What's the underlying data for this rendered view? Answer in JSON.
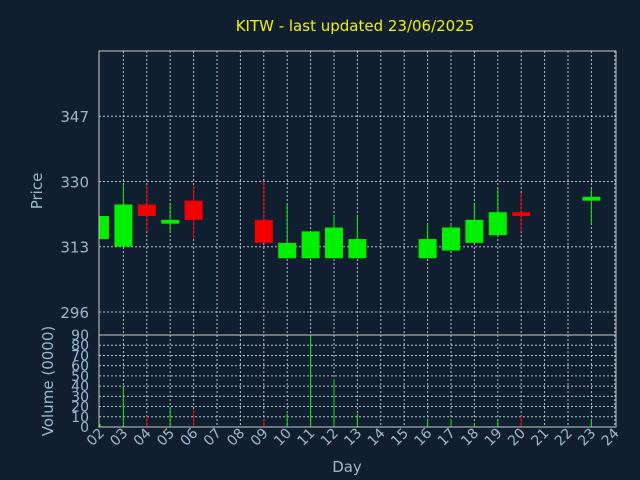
{
  "chart_data": [
    {
      "type": "candlestick",
      "title": "KITW - last updated 23/06/2025",
      "ylabel": "Price",
      "ylim": [
        290,
        364
      ],
      "yticks": [
        296,
        313,
        330,
        347
      ],
      "grid": true,
      "categories": [
        "02",
        "03",
        "04",
        "05",
        "06",
        "07",
        "08",
        "09",
        "10",
        "11",
        "12",
        "13",
        "14",
        "15",
        "16",
        "17",
        "18",
        "19",
        "20",
        "21",
        "22",
        "23",
        "24"
      ],
      "candles": [
        {
          "x": "02",
          "open": 315,
          "high": 321,
          "low": 315,
          "close": 321,
          "direction": "up"
        },
        {
          "x": "03",
          "open": 313,
          "high": 329,
          "low": 313,
          "close": 324,
          "direction": "up"
        },
        {
          "x": "04",
          "open": 324,
          "high": 329,
          "low": 317,
          "close": 321,
          "direction": "down"
        },
        {
          "x": "05",
          "open": 319,
          "high": 324,
          "low": 317,
          "close": 320,
          "direction": "up"
        },
        {
          "x": "06",
          "open": 325,
          "high": 329,
          "low": 315,
          "close": 320,
          "direction": "down"
        },
        {
          "x": "09",
          "open": 320,
          "high": 330,
          "low": 314,
          "close": 314,
          "direction": "down"
        },
        {
          "x": "10",
          "open": 310,
          "high": 324,
          "low": 310,
          "close": 314,
          "direction": "up"
        },
        {
          "x": "11",
          "open": 310,
          "high": 317,
          "low": 310,
          "close": 317,
          "direction": "up"
        },
        {
          "x": "12",
          "open": 310,
          "high": 321,
          "low": 310,
          "close": 318,
          "direction": "up"
        },
        {
          "x": "13",
          "open": 310,
          "high": 321,
          "low": 310,
          "close": 315,
          "direction": "up"
        },
        {
          "x": "16",
          "open": 310,
          "high": 319,
          "low": 310,
          "close": 315,
          "direction": "up"
        },
        {
          "x": "17",
          "open": 312,
          "high": 319,
          "low": 312,
          "close": 318,
          "direction": "up"
        },
        {
          "x": "18",
          "open": 314,
          "high": 324,
          "low": 314,
          "close": 320,
          "direction": "up"
        },
        {
          "x": "19",
          "open": 316,
          "high": 328,
          "low": 316,
          "close": 322,
          "direction": "up"
        },
        {
          "x": "20",
          "open": 322,
          "high": 327,
          "low": 317,
          "close": 321,
          "direction": "down"
        },
        {
          "x": "23",
          "open": 325,
          "high": 328,
          "low": 319,
          "close": 326,
          "direction": "up"
        }
      ],
      "colors": {
        "up": "#00f000",
        "down": "#f00000"
      }
    },
    {
      "type": "bar",
      "ylabel": "Volume (0000)",
      "ylim": [
        0,
        90
      ],
      "yticks": [
        0,
        10,
        20,
        30,
        40,
        50,
        60,
        70,
        80,
        90
      ],
      "xlabel": "Day",
      "categories": [
        "02",
        "03",
        "04",
        "05",
        "06",
        "07",
        "08",
        "09",
        "10",
        "11",
        "12",
        "13",
        "14",
        "15",
        "16",
        "17",
        "18",
        "19",
        "20",
        "21",
        "22",
        "23",
        "24"
      ],
      "bars": [
        {
          "x": "02",
          "value": 3,
          "direction": "up"
        },
        {
          "x": "03",
          "value": 39,
          "direction": "up"
        },
        {
          "x": "04",
          "value": 11,
          "direction": "down"
        },
        {
          "x": "05",
          "value": 19,
          "direction": "up"
        },
        {
          "x": "06",
          "value": 17,
          "direction": "down"
        },
        {
          "x": "09",
          "value": 8,
          "direction": "down"
        },
        {
          "x": "10",
          "value": 13,
          "direction": "up"
        },
        {
          "x": "11",
          "value": 89,
          "direction": "up"
        },
        {
          "x": "12",
          "value": 47,
          "direction": "up"
        },
        {
          "x": "13",
          "value": 13,
          "direction": "up"
        },
        {
          "x": "16",
          "value": 8,
          "direction": "up"
        },
        {
          "x": "17",
          "value": 8,
          "direction": "up"
        },
        {
          "x": "18",
          "value": 4,
          "direction": "up"
        },
        {
          "x": "19",
          "value": 8,
          "direction": "up"
        },
        {
          "x": "20",
          "value": 11,
          "direction": "down"
        },
        {
          "x": "23",
          "value": 7,
          "direction": "up"
        }
      ],
      "colors": {
        "up": "#00f000",
        "down": "#f00000"
      }
    }
  ]
}
